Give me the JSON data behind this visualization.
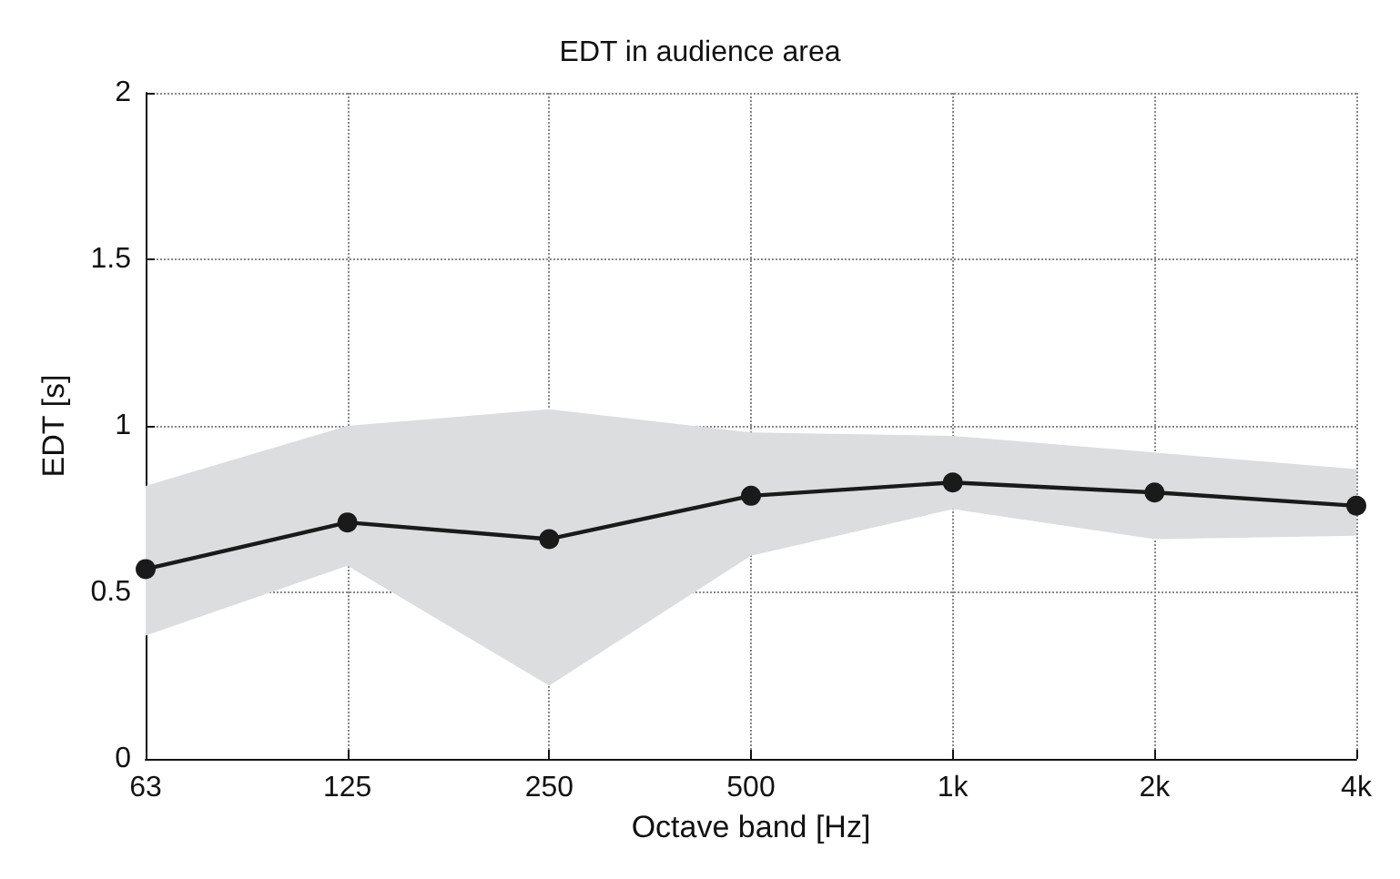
{
  "chart_data": {
    "type": "line",
    "title": "EDT in audience area",
    "xlabel": "Octave band [Hz]",
    "ylabel": "EDT [s]",
    "categories": [
      "63",
      "125",
      "250",
      "500",
      "1k",
      "2k",
      "4k"
    ],
    "series": [
      {
        "color": "#1a1a1a",
        "values": [
          0.57,
          0.71,
          0.66,
          0.79,
          0.83,
          0.8,
          0.76
        ],
        "lower": [
          0.37,
          0.58,
          0.22,
          0.61,
          0.75,
          0.66,
          0.67
        ],
        "upper": [
          0.82,
          1.0,
          1.05,
          0.98,
          0.97,
          0.92,
          0.87
        ]
      }
    ],
    "ylim": [
      0,
      2
    ],
    "yticks": [
      0,
      0.5,
      1,
      1.5,
      2
    ],
    "grid": true,
    "marker": "circle",
    "line_style": "solid"
  }
}
